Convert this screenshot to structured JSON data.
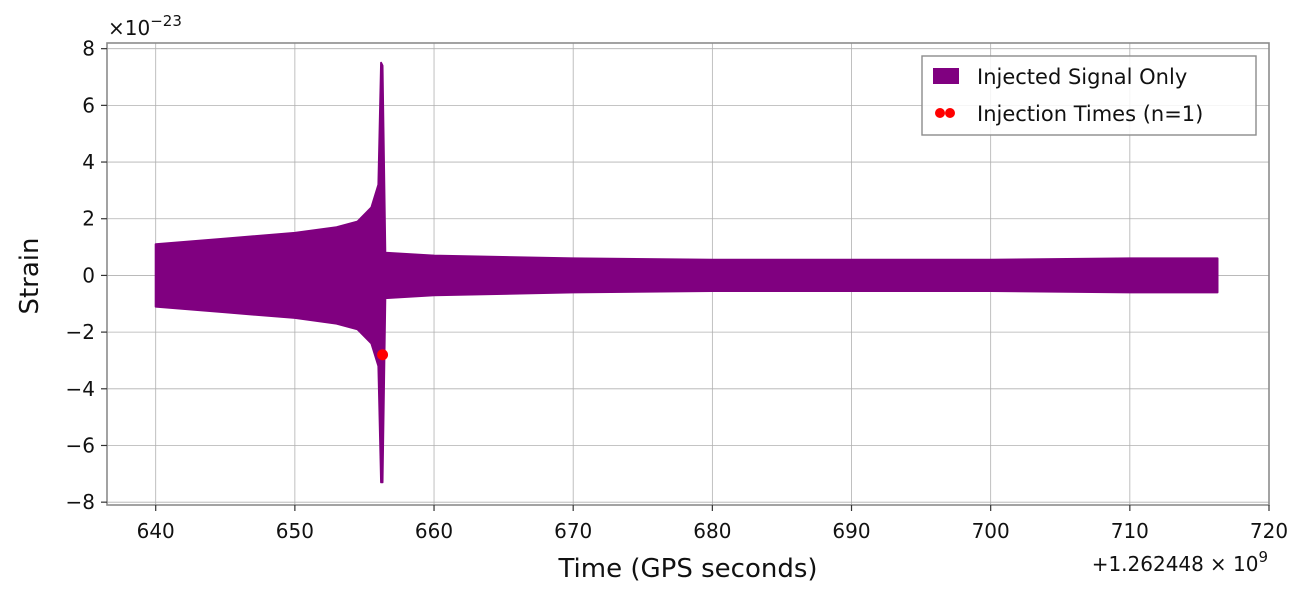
{
  "chart_data": {
    "type": "line",
    "title": "",
    "xlabel": "Time (GPS seconds)",
    "ylabel": "Strain",
    "x_offset_label": "+1.262448",
    "x_offset_label_suffix": "× 10",
    "x_offset_exponent": "9",
    "y_scale_label": "×10",
    "y_scale_exponent": "−23",
    "xlim": [
      636.5,
      720
    ],
    "ylim": [
      -8.1,
      8.2
    ],
    "x_ticks": [
      640,
      650,
      660,
      670,
      680,
      690,
      700,
      710,
      720
    ],
    "x_tick_labels": [
      "640",
      "650",
      "660",
      "670",
      "680",
      "690",
      "700",
      "710",
      "720"
    ],
    "y_ticks": [
      8,
      6,
      4,
      2,
      0,
      -2,
      -4,
      -6,
      -8
    ],
    "y_tick_labels": [
      "8",
      "6",
      "4",
      "2",
      "0",
      "−2",
      "−4",
      "−6",
      "−8"
    ],
    "grid": true,
    "legend_position": "top-right",
    "series": [
      {
        "name": "Injected Signal Only",
        "color": "#800080",
        "envelope": {
          "time": [
            640.0,
            645.0,
            650.0,
            653.0,
            654.5,
            655.5,
            656.0,
            656.2,
            656.3,
            656.5,
            660.0,
            670.0,
            680.0,
            690.0,
            700.0,
            710.0,
            716.3
          ],
          "upper": [
            1.1,
            1.3,
            1.5,
            1.7,
            1.9,
            2.4,
            3.2,
            7.5,
            7.4,
            0.8,
            0.7,
            0.6,
            0.55,
            0.55,
            0.55,
            0.6,
            0.6
          ],
          "lower": [
            -1.1,
            -1.3,
            -1.5,
            -1.7,
            -1.9,
            -2.4,
            -3.2,
            -7.3,
            -7.3,
            -0.8,
            -0.7,
            -0.6,
            -0.55,
            -0.55,
            -0.55,
            -0.6,
            -0.6
          ]
        }
      },
      {
        "name": "Injection Times (n=1)",
        "color": "#ff0000",
        "points": [
          {
            "time": 656.3,
            "strain": -2.8
          }
        ]
      }
    ]
  }
}
